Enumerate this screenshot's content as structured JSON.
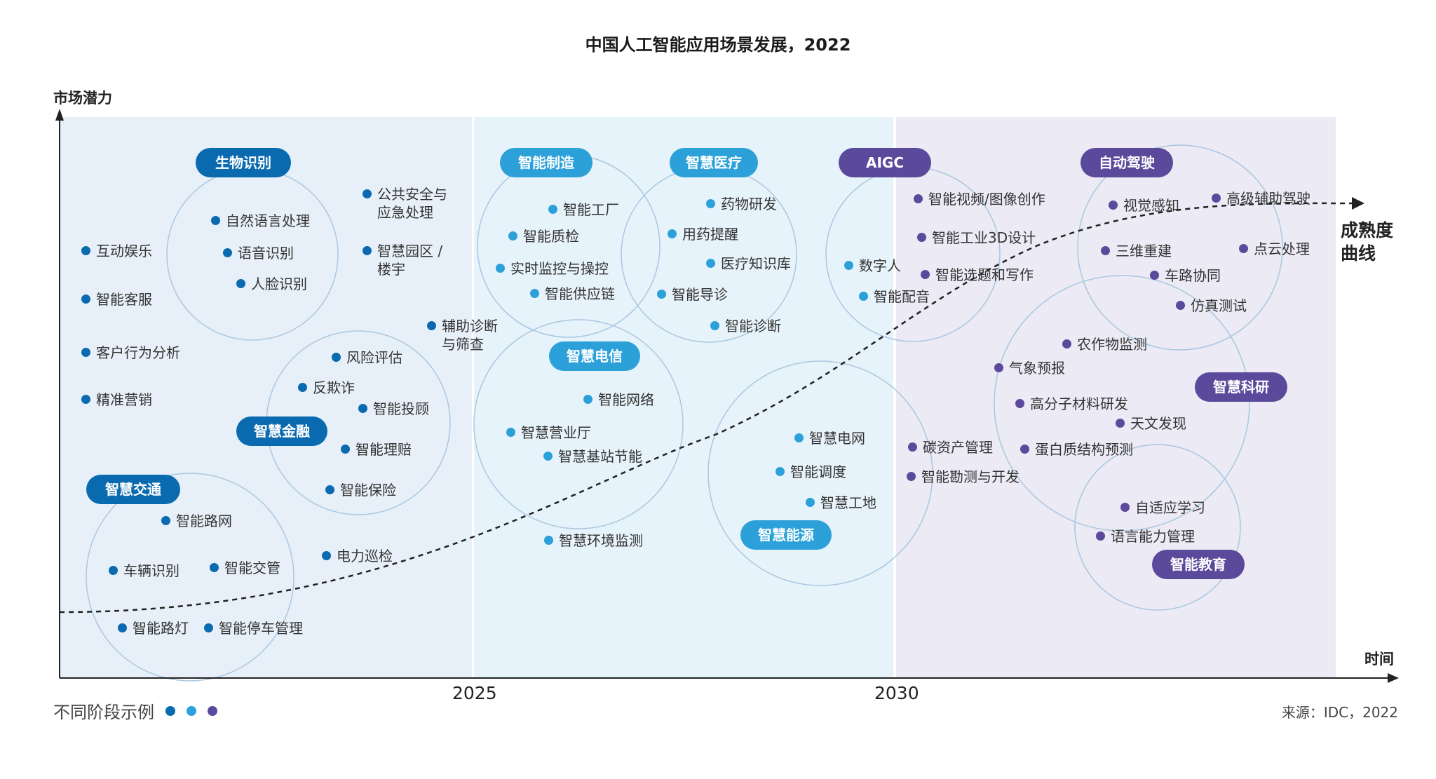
{
  "title": "中国人工智能应用场景发展，2022",
  "y_axis_label": "市场潜力",
  "x_axis_label": "时间",
  "x_ticks": [
    "2025",
    "2030"
  ],
  "curve_label": "成熟度\n曲线",
  "legend_label": "不同阶段示例",
  "source": "来源：IDC，2022",
  "colors": {
    "stage1": "#0a6ab0",
    "stage2": "#2ca0d8",
    "stage3": "#5b4a9c"
  },
  "clusters": [
    {
      "name": "生物识别",
      "stage": 1
    },
    {
      "name": "智慧金融",
      "stage": 1
    },
    {
      "name": "智慧交通",
      "stage": 1
    },
    {
      "name": "智能制造",
      "stage": 2
    },
    {
      "name": "智慧医疗",
      "stage": 2
    },
    {
      "name": "智慧电信",
      "stage": 2
    },
    {
      "name": "智慧能源",
      "stage": 2
    },
    {
      "name": "AIGC",
      "stage": 3
    },
    {
      "name": "自动驾驶",
      "stage": 3
    },
    {
      "name": "智慧科研",
      "stage": 3
    },
    {
      "name": "智能教育",
      "stage": 3
    }
  ],
  "items": [
    {
      "text": "互动娱乐",
      "stage": 1
    },
    {
      "text": "智能客服",
      "stage": 1
    },
    {
      "text": "客户行为分析",
      "stage": 1
    },
    {
      "text": "精准营销",
      "stage": 1
    },
    {
      "text": "自然语言处理",
      "stage": 1
    },
    {
      "text": "语音识别",
      "stage": 1
    },
    {
      "text": "人脸识别",
      "stage": 1
    },
    {
      "text": "公共安全与\n应急处理",
      "stage": 1
    },
    {
      "text": "智慧园区 /\n楼宇",
      "stage": 1
    },
    {
      "text": "辅助诊断\n与筛查",
      "stage": 1
    },
    {
      "text": "风险评估",
      "stage": 1
    },
    {
      "text": "反欺诈",
      "stage": 1
    },
    {
      "text": "智能投顾",
      "stage": 1
    },
    {
      "text": "智能理赔",
      "stage": 1
    },
    {
      "text": "智能保险",
      "stage": 1
    },
    {
      "text": "智能路网",
      "stage": 1
    },
    {
      "text": "车辆识别",
      "stage": 1
    },
    {
      "text": "智能交管",
      "stage": 1
    },
    {
      "text": "电力巡检",
      "stage": 1
    },
    {
      "text": "智能路灯",
      "stage": 1
    },
    {
      "text": "智能停车管理",
      "stage": 1
    },
    {
      "text": "智能工厂",
      "stage": 2
    },
    {
      "text": "智能质检",
      "stage": 2
    },
    {
      "text": "实时监控与操控",
      "stage": 2
    },
    {
      "text": "智能供应链",
      "stage": 2
    },
    {
      "text": "药物研发",
      "stage": 2
    },
    {
      "text": "用药提醒",
      "stage": 2
    },
    {
      "text": "医疗知识库",
      "stage": 2
    },
    {
      "text": "智能导诊",
      "stage": 2
    },
    {
      "text": "智能诊断",
      "stage": 2
    },
    {
      "text": "智能网络",
      "stage": 2
    },
    {
      "text": "智慧营业厅",
      "stage": 2
    },
    {
      "text": "智慧基站节能",
      "stage": 2
    },
    {
      "text": "智慧环境监测",
      "stage": 2
    },
    {
      "text": "智慧电网",
      "stage": 2
    },
    {
      "text": "智能调度",
      "stage": 2
    },
    {
      "text": "智慧工地",
      "stage": 2
    },
    {
      "text": "数字人",
      "stage": 2
    },
    {
      "text": "智能配音",
      "stage": 2
    },
    {
      "text": "智能视频/图像创作",
      "stage": 3
    },
    {
      "text": "智能工业3D设计",
      "stage": 3
    },
    {
      "text": "智能选题和写作",
      "stage": 3
    },
    {
      "text": "碳资产管理",
      "stage": 3
    },
    {
      "text": "智能勘测与开发",
      "stage": 3
    },
    {
      "text": "视觉感知",
      "stage": 3
    },
    {
      "text": "高级辅助驾驶",
      "stage": 3
    },
    {
      "text": "三维重建",
      "stage": 3
    },
    {
      "text": "点云处理",
      "stage": 3
    },
    {
      "text": "车路协同",
      "stage": 3
    },
    {
      "text": "仿真测试",
      "stage": 3
    },
    {
      "text": "农作物监测",
      "stage": 3
    },
    {
      "text": "气象预报",
      "stage": 3
    },
    {
      "text": "高分子材料研发",
      "stage": 3
    },
    {
      "text": "天文发现",
      "stage": 3
    },
    {
      "text": "蛋白质结构预测",
      "stage": 3
    },
    {
      "text": "自适应学习",
      "stage": 3
    },
    {
      "text": "语言能力管理",
      "stage": 3
    }
  ]
}
